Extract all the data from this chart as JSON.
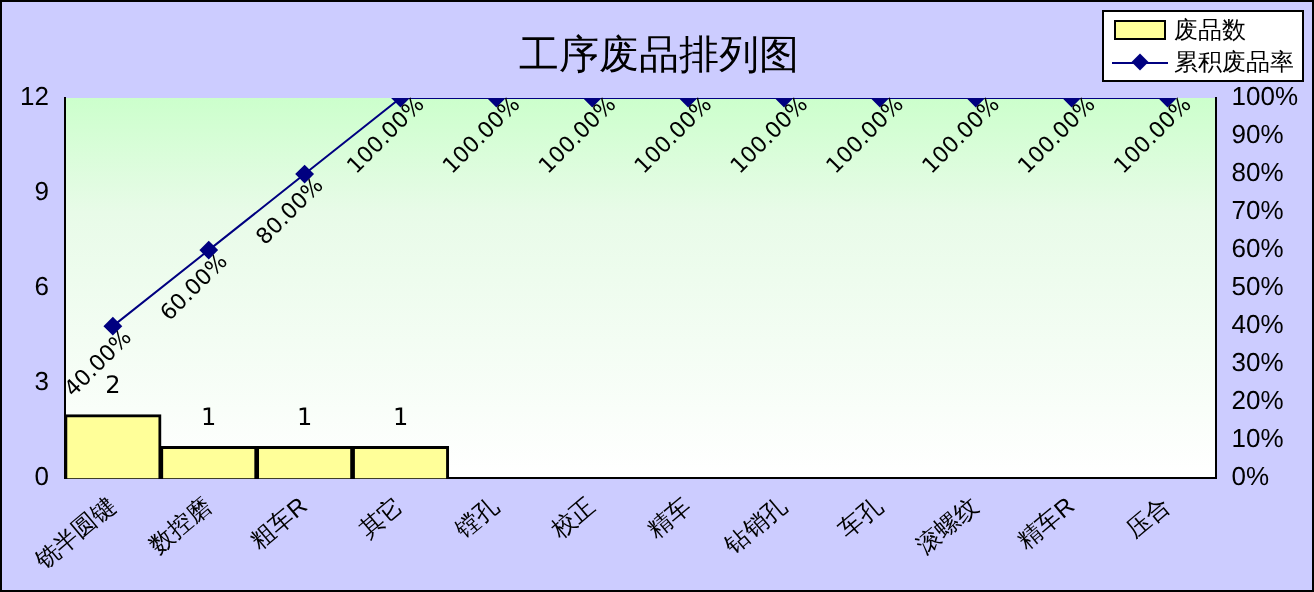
{
  "chart_data": {
    "type": "bar",
    "title": "工序废品排列图",
    "categories": [
      "铣半圆键",
      "数控磨",
      "粗车R",
      "其它",
      "镗孔",
      "校正",
      "精车",
      "钻销孔",
      "车孔",
      "滚螺纹",
      "精车R",
      "压合"
    ],
    "series": [
      {
        "name": "废品数",
        "color": "#ffff99",
        "values": [
          2,
          1,
          1,
          1,
          0,
          0,
          0,
          0,
          0,
          0,
          0,
          0
        ],
        "value_labels": [
          "2",
          "1",
          "1",
          "1",
          null,
          null,
          null,
          null,
          null,
          null,
          null,
          null
        ]
      },
      {
        "name": "累积废品率",
        "type": "line",
        "axis": "y2",
        "color": "#000080",
        "values": [
          40,
          60,
          80,
          100,
          100,
          100,
          100,
          100,
          100,
          100,
          100,
          100
        ],
        "value_labels": [
          "40.00%",
          "60.00%",
          "80.00%",
          "100.00%",
          "100.00%",
          "100.00%",
          "100.00%",
          "100.00%",
          "100.00%",
          "100.00%",
          "100.00%",
          "100.00%"
        ]
      }
    ],
    "ylim": [
      0,
      12
    ],
    "yticks": [
      0,
      3,
      6,
      9,
      12
    ],
    "y2lim": [
      0,
      100
    ],
    "y2ticks": [
      {
        "value": 0,
        "label": "0%"
      },
      {
        "value": 10,
        "label": "10%"
      },
      {
        "value": 20,
        "label": "20%"
      },
      {
        "value": 30,
        "label": "30%"
      },
      {
        "value": 40,
        "label": "40%"
      },
      {
        "value": 50,
        "label": "50%"
      },
      {
        "value": 60,
        "label": "60%"
      },
      {
        "value": 70,
        "label": "70%"
      },
      {
        "value": 80,
        "label": "80%"
      },
      {
        "value": 90,
        "label": "90%"
      },
      {
        "value": 100,
        "label": "100%"
      }
    ],
    "legend": "top right",
    "marker": "diamond",
    "grid": false
  }
}
